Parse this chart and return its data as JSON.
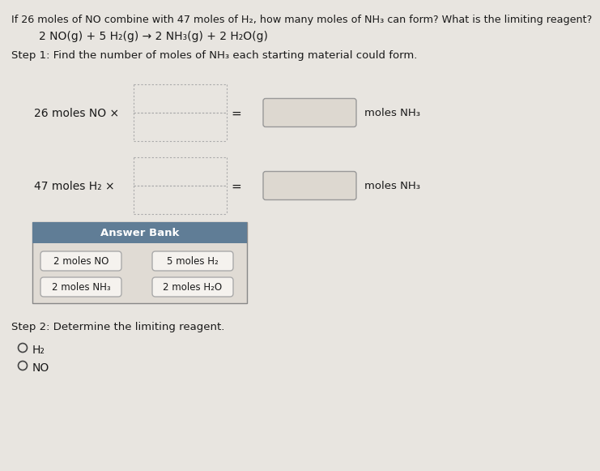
{
  "bg_color": "#e8e5e0",
  "content_bg": "#f0ede8",
  "title_line1": "If 26 moles of NO combine with 47 moles of H₂, how many moles of NH₃ can form? What is the limiting reagent?",
  "equation": "2 NO(g) + 5 H₂(g) → 2 NH₃(g) + 2 H₂O(g)",
  "step1_text": "Step 1: Find the number of moles of NH₃ each starting material could form.",
  "label_no": "26 moles NO ×",
  "label_h2": "47 moles H₂ ×",
  "moles_nh3": "moles NH₃",
  "answer_bank_title": "Answer Bank",
  "answer_items": [
    "2 moles NO",
    "5 moles H₂",
    "2 moles NH₃",
    "2 moles H₂O"
  ],
  "step2_text": "Step 2: Determine the limiting reagent.",
  "radio1": "H₂",
  "radio2": "NO",
  "answer_bank_header_color": "#607d96",
  "answer_bank_bg": "#e0dbd4",
  "answer_item_bg": "#f5f2ee",
  "dotted_box_color": "#aaaaaa",
  "result_box_color": "#ddd8d0",
  "result_box_edge": "#999999",
  "text_color": "#1a1a1a"
}
